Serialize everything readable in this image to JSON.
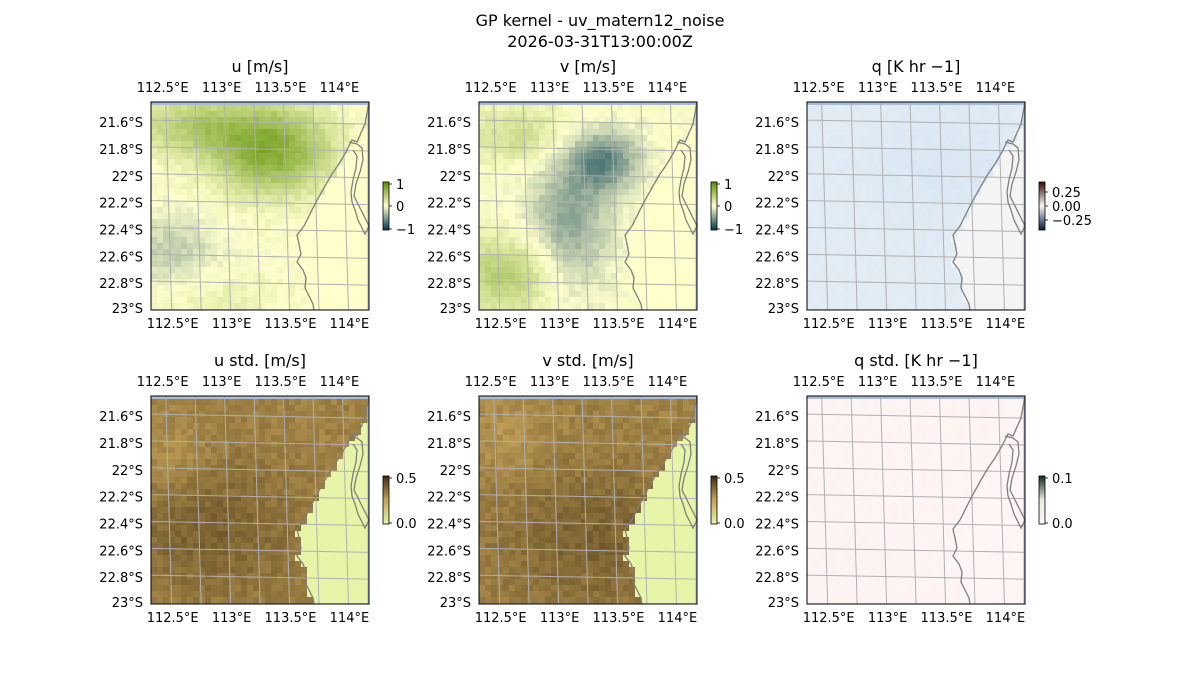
{
  "figure": {
    "title": "GP kernel - uv_matern12_noise",
    "subtitle": "2026-03-31T13:00:00Z"
  },
  "colors": {
    "ocean_blue": "#a6bddb",
    "coast_line": "#7f7f7f",
    "grid_line": "#b0b0b0",
    "land_yellow": "#ffffcc"
  },
  "chart_data": [
    {
      "type": "heatmap",
      "title": "u [m/s]",
      "x_ticks": [
        "112.5°E",
        "113°E",
        "113.5°E",
        "114°E"
      ],
      "y_ticks": [
        "21.6°S",
        "21.8°S",
        "22°S",
        "22.2°S",
        "22.4°S",
        "22.6°S",
        "22.8°S",
        "23°S"
      ],
      "lon_range": [
        112.35,
        114.2
      ],
      "lat_range": [
        -23.0,
        -21.45
      ],
      "colorbar": {
        "ticks": [
          "1",
          "0",
          "−1"
        ],
        "range": [
          -1,
          1
        ],
        "colors": [
          "#003850",
          "#ffffcc",
          "#5b8f00"
        ]
      },
      "field": "u",
      "legend": "right of map"
    },
    {
      "type": "heatmap",
      "title": "v [m/s]",
      "x_ticks": [
        "112.5°E",
        "113°E",
        "113.5°E",
        "114°E"
      ],
      "y_ticks": [
        "21.6°S",
        "21.8°S",
        "22°S",
        "22.2°S",
        "22.4°S",
        "22.6°S",
        "22.8°S",
        "23°S"
      ],
      "lon_range": [
        112.35,
        114.2
      ],
      "lat_range": [
        -23.0,
        -21.45
      ],
      "colorbar": {
        "ticks": [
          "1",
          "0",
          "−1"
        ],
        "range": [
          -1,
          1
        ],
        "colors": [
          "#003850",
          "#ffffcc",
          "#5b8f00"
        ]
      },
      "field": "v",
      "legend": "right of map"
    },
    {
      "type": "heatmap",
      "title": "q [K hr −1]",
      "x_ticks": [
        "112.5°E",
        "113°E",
        "113.5°E",
        "114°E"
      ],
      "y_ticks": [
        "21.6°S",
        "21.8°S",
        "22°S",
        "22.2°S",
        "22.4°S",
        "22.6°S",
        "22.8°S",
        "23°S"
      ],
      "lon_range": [
        112.35,
        114.2
      ],
      "lat_range": [
        -23.0,
        -21.45
      ],
      "colorbar": {
        "ticks": [
          "0.25",
          "0.00",
          "−0.25"
        ],
        "range": [
          -0.35,
          0.35
        ],
        "colors": [
          "#051c40",
          "#f5f5f5",
          "#3a0a0a"
        ]
      },
      "field": "q",
      "legend": "right of map"
    },
    {
      "type": "heatmap",
      "title": "u std. [m/s]",
      "x_ticks": [
        "112.5°E",
        "113°E",
        "113.5°E",
        "114°E"
      ],
      "y_ticks": [
        "21.6°S",
        "21.8°S",
        "22°S",
        "22.2°S",
        "22.4°S",
        "22.6°S",
        "22.8°S",
        "23°S"
      ],
      "lon_range": [
        112.35,
        114.2
      ],
      "lat_range": [
        -23.0,
        -21.45
      ],
      "colorbar": {
        "ticks": [
          "0.5",
          "0.0"
        ],
        "range": [
          0.0,
          0.6
        ],
        "colors": [
          "#e6f5a8",
          "#c5a258",
          "#3b2a10"
        ]
      },
      "field": "ustd",
      "legend": "right of map"
    },
    {
      "type": "heatmap",
      "title": "v std. [m/s]",
      "x_ticks": [
        "112.5°E",
        "113°E",
        "113.5°E",
        "114°E"
      ],
      "y_ticks": [
        "21.6°S",
        "21.8°S",
        "22°S",
        "22.2°S",
        "22.4°S",
        "22.6°S",
        "22.8°S",
        "23°S"
      ],
      "lon_range": [
        112.35,
        114.2
      ],
      "lat_range": [
        -23.0,
        -21.45
      ],
      "colorbar": {
        "ticks": [
          "0.5",
          "0.0"
        ],
        "range": [
          0.0,
          0.6
        ],
        "colors": [
          "#e6f5a8",
          "#c5a258",
          "#3b2a10"
        ]
      },
      "field": "vstd",
      "legend": "right of map"
    },
    {
      "type": "heatmap",
      "title": "q std. [K hr −1]",
      "x_ticks": [
        "112.5°E",
        "113°E",
        "113.5°E",
        "114°E"
      ],
      "y_ticks": [
        "21.6°S",
        "21.8°S",
        "22°S",
        "22.2°S",
        "22.4°S",
        "22.6°S",
        "22.8°S",
        "23°S"
      ],
      "lon_range": [
        112.35,
        114.2
      ],
      "lat_range": [
        -23.0,
        -21.45
      ],
      "colorbar": {
        "ticks": [
          "0.1",
          "0.0"
        ],
        "range": [
          0.0,
          0.12
        ],
        "colors": [
          "#fff5f5",
          "#eee9df",
          "#0c2a1c"
        ]
      },
      "field": "qstd",
      "legend": "right of map"
    }
  ]
}
